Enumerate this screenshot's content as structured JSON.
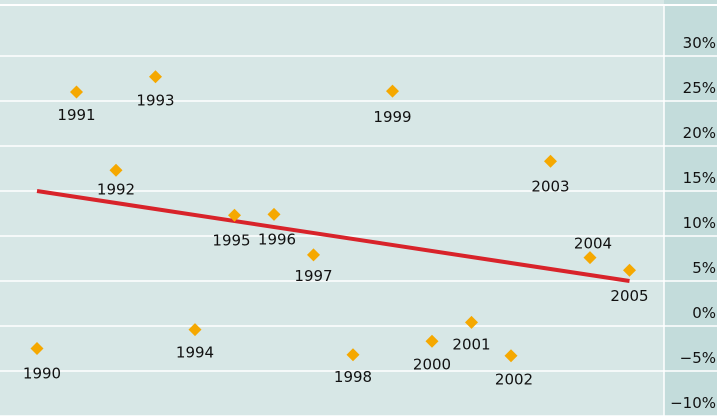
{
  "chart_data": {
    "type": "scatter",
    "x": [
      1990,
      1991,
      1992,
      1993,
      1994,
      1995,
      1996,
      1997,
      1998,
      1999,
      2000,
      2001,
      2002,
      2003,
      2004,
      2005
    ],
    "values": [
      -2.5,
      26,
      17.3,
      27.7,
      -0.4,
      12.3,
      12.4,
      7.9,
      -3.2,
      26.1,
      -1.7,
      0.4,
      -3.3,
      18.3,
      7.6,
      6.2
    ],
    "color": "#f5a800",
    "trend": {
      "x": [
        1990,
        2005
      ],
      "values": [
        15,
        5
      ],
      "color": "#d8232a"
    },
    "ylim": [
      -10,
      35
    ],
    "yticks": [
      {
        "value": -10,
        "label": "−10%"
      },
      {
        "value": -5,
        "label": "−5%"
      },
      {
        "value": 0,
        "label": "0%"
      },
      {
        "value": 5,
        "label": "5%"
      },
      {
        "value": 10,
        "label": "10%"
      },
      {
        "value": 15,
        "label": "15%"
      },
      {
        "value": 20,
        "label": "20%"
      },
      {
        "value": 25,
        "label": "25%"
      },
      {
        "value": 30,
        "label": "30%"
      }
    ],
    "grid": true
  }
}
